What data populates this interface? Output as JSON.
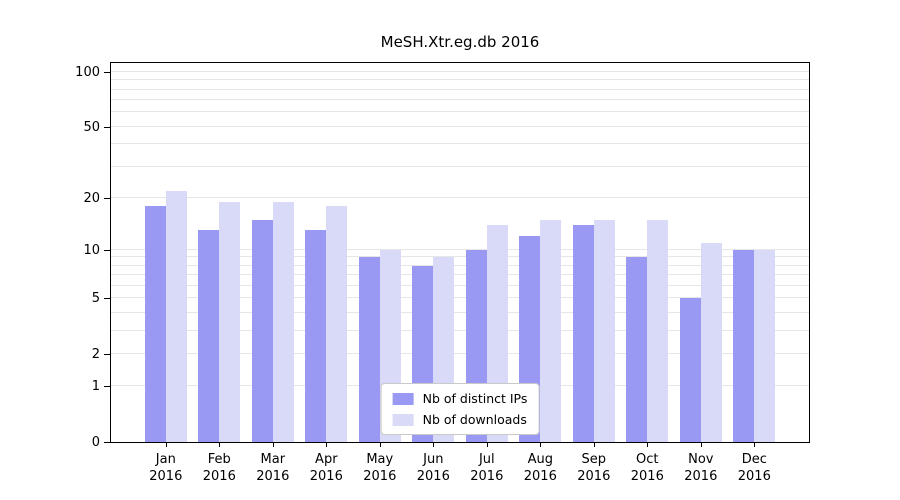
{
  "chart_data": {
    "type": "bar",
    "title": "MeSH.Xtr.eg.db 2016",
    "categories": [
      "Jan",
      "Feb",
      "Mar",
      "Apr",
      "May",
      "Jun",
      "Jul",
      "Aug",
      "Sep",
      "Oct",
      "Nov",
      "Dec"
    ],
    "year_label": "2016",
    "series": [
      {
        "name": "Nb of distinct IPs",
        "color": "#9999f3",
        "values": [
          18,
          13,
          15,
          13,
          9,
          8,
          10,
          12,
          14,
          9,
          5,
          10
        ]
      },
      {
        "name": "Nb of downloads",
        "color": "#d9d9f8",
        "values": [
          22,
          19,
          19,
          18,
          10,
          9,
          14,
          15,
          15,
          15,
          11,
          10
        ]
      }
    ],
    "y_ticks": [
      0,
      1,
      2,
      5,
      10,
      20,
      50,
      100
    ],
    "y_minor_gridlines": [
      1,
      2,
      3,
      4,
      5,
      6,
      7,
      8,
      9,
      10,
      20,
      30,
      40,
      50,
      60,
      70,
      80,
      90,
      100
    ],
    "y_scale": "log10(value+1)",
    "ylim": [
      0,
      112
    ],
    "grid": true,
    "legend_position": "bottom-center"
  }
}
